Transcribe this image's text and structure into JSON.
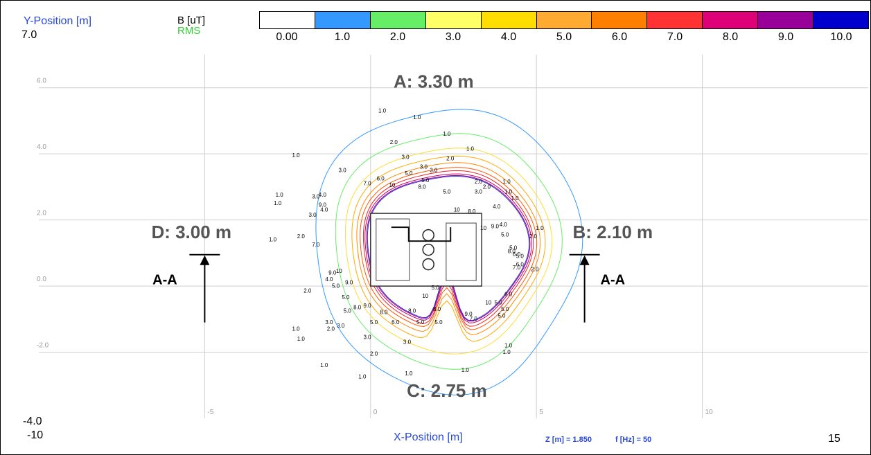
{
  "chart_data": {
    "type": "contour",
    "title": "",
    "xlabel": "X-Position [m]",
    "ylabel": "Y-Position [m]",
    "xlim": [
      -10,
      15
    ],
    "ylim": [
      -4.0,
      7.0
    ],
    "x_min_label": "-10",
    "x_max_label": "15",
    "y_max_label": "7.0",
    "y_min_label": "-4.0",
    "x_ticks": [
      {
        "value": -5,
        "label": "-5"
      },
      {
        "value": 0,
        "label": "0"
      },
      {
        "value": 5,
        "label": "5"
      },
      {
        "value": 10,
        "label": "10"
      }
    ],
    "y_ticks": [
      {
        "value": 6,
        "label": "6.0"
      },
      {
        "value": 4,
        "label": "4.0"
      },
      {
        "value": 2,
        "label": "2.0"
      },
      {
        "value": 0,
        "label": "0.0"
      },
      {
        "value": -2,
        "label": "-2.0"
      }
    ],
    "grid": true,
    "colorbar": {
      "unit_label": "B [uT]",
      "quantity_label": "RMS",
      "levels": [
        "0.00",
        "1.0",
        "2.0",
        "3.0",
        "4.0",
        "5.0",
        "6.0",
        "7.0",
        "8.0",
        "9.0",
        "10.0"
      ],
      "colors": [
        "#ffffff",
        "#3399ff",
        "#66ee66",
        "#ffff66",
        "#ffdd00",
        "#ffaa33",
        "#ff8000",
        "#ff3333",
        "#dd0077",
        "#990099",
        "#0000cc"
      ]
    },
    "contour_levels": [
      {
        "value": 1.0,
        "label": "1.0",
        "color": "#3399ff",
        "rx": 8.0,
        "ry": 8.6
      },
      {
        "value": 2.0,
        "label": "2.0",
        "color": "#66ee66",
        "rx": 6.8,
        "ry": 7.1
      },
      {
        "value": 3.0,
        "label": "3.0",
        "color": "#ffdd33",
        "rx": 6.2,
        "ry": 6.2
      },
      {
        "value": 4.0,
        "label": "4.0",
        "color": "#ffaa00",
        "rx": 5.8,
        "ry": 5.7
      },
      {
        "value": 5.0,
        "label": "5.0",
        "color": "#ff8800",
        "rx": 5.5,
        "ry": 5.3
      },
      {
        "value": 6.0,
        "label": "6.0",
        "color": "#ff5500",
        "rx": 5.3,
        "ry": 5.0
      },
      {
        "value": 7.0,
        "label": "7.0",
        "color": "#ee2222",
        "rx": 5.1,
        "ry": 4.8
      },
      {
        "value": 8.0,
        "label": "8.0",
        "color": "#cc0066",
        "rx": 5.0,
        "ry": 4.6
      },
      {
        "value": 9.0,
        "label": "9.0",
        "color": "#990099",
        "rx": 4.9,
        "ry": 4.5
      },
      {
        "value": 10.0,
        "label": "10",
        "color": "#3333cc",
        "rx": 4.85,
        "ry": 4.45
      }
    ],
    "contour_center": [
      2.3,
      1.15
    ],
    "contour_labels": [
      {
        "x": 0.35,
        "y": 5.25,
        "text": "1.0"
      },
      {
        "x": 1.4,
        "y": 5.05,
        "text": "1.0"
      },
      {
        "x": 2.3,
        "y": 4.55,
        "text": "1.0"
      },
      {
        "x": 3.0,
        "y": 4.1,
        "text": "1.0"
      },
      {
        "x": -2.25,
        "y": 3.9,
        "text": "1.0"
      },
      {
        "x": -2.75,
        "y": 2.7,
        "text": "1.0"
      },
      {
        "x": -2.8,
        "y": 2.45,
        "text": "1.0"
      },
      {
        "x": -2.95,
        "y": 1.35,
        "text": "1.0"
      },
      {
        "x": 5.1,
        "y": 1.7,
        "text": "1.0"
      },
      {
        "x": 4.1,
        "y": 3.1,
        "text": "1.0"
      },
      {
        "x": 4.15,
        "y": 2.8,
        "text": "1.0"
      },
      {
        "x": 4.35,
        "y": 2.6,
        "text": "1.0"
      },
      {
        "x": -2.25,
        "y": -1.35,
        "text": "1.0"
      },
      {
        "x": -2.1,
        "y": -1.65,
        "text": "1.0"
      },
      {
        "x": -1.4,
        "y": -2.45,
        "text": "1.0"
      },
      {
        "x": -0.25,
        "y": -2.8,
        "text": "1.0"
      },
      {
        "x": 1.15,
        "y": -2.7,
        "text": "1.0"
      },
      {
        "x": 2.85,
        "y": -2.6,
        "text": "1.0"
      },
      {
        "x": 4.15,
        "y": -1.85,
        "text": "1.0"
      },
      {
        "x": 4.1,
        "y": -2.05,
        "text": "1.0"
      },
      {
        "x": 0.7,
        "y": 4.3,
        "text": "2.0"
      },
      {
        "x": 3.25,
        "y": 3.1,
        "text": "2.0"
      },
      {
        "x": 3.5,
        "y": 2.95,
        "text": "2.0"
      },
      {
        "x": 4.9,
        "y": 1.45,
        "text": "2.0"
      },
      {
        "x": 4.95,
        "y": 0.45,
        "text": "2.0"
      },
      {
        "x": -2.1,
        "y": 1.45,
        "text": "2.0"
      },
      {
        "x": -1.9,
        "y": -0.2,
        "text": "2.0"
      },
      {
        "x": -1.2,
        "y": -1.35,
        "text": "2.0"
      },
      {
        "x": 0.1,
        "y": -2.1,
        "text": "2.0"
      },
      {
        "x": 1.05,
        "y": 3.85,
        "text": "3.0"
      },
      {
        "x": 1.6,
        "y": 3.55,
        "text": "3.0"
      },
      {
        "x": -0.85,
        "y": 3.45,
        "text": "3.0"
      },
      {
        "x": 3.25,
        "y": 2.8,
        "text": "3.0"
      },
      {
        "x": -1.65,
        "y": 2.65,
        "text": "3.0"
      },
      {
        "x": -1.75,
        "y": 2.1,
        "text": "3.0"
      },
      {
        "x": -1.25,
        "y": -1.15,
        "text": "3.0"
      },
      {
        "x": -0.9,
        "y": -1.25,
        "text": "3.0"
      },
      {
        "x": -0.1,
        "y": -1.6,
        "text": "3.0"
      },
      {
        "x": 1.1,
        "y": -1.75,
        "text": "3.0"
      },
      {
        "x": 2.4,
        "y": 3.8,
        "text": "2.0"
      },
      {
        "x": 1.9,
        "y": 3.45,
        "text": "3.0"
      },
      {
        "x": -1.45,
        "y": 2.7,
        "text": "4.0"
      },
      {
        "x": -1.4,
        "y": 2.25,
        "text": "4.0"
      },
      {
        "x": 3.8,
        "y": 2.35,
        "text": "4.0"
      },
      {
        "x": 4.0,
        "y": 1.8,
        "text": "4.0"
      },
      {
        "x": -1.25,
        "y": 0.15,
        "text": "4.0"
      },
      {
        "x": 1.15,
        "y": 3.35,
        "text": "5.0"
      },
      {
        "x": 1.65,
        "y": 3.15,
        "text": "5.0"
      },
      {
        "x": 2.3,
        "y": 2.8,
        "text": "5.0"
      },
      {
        "x": 4.05,
        "y": 1.5,
        "text": "5.0"
      },
      {
        "x": 4.3,
        "y": 1.1,
        "text": "5.0"
      },
      {
        "x": 4.5,
        "y": 0.85,
        "text": "5.0"
      },
      {
        "x": -1.05,
        "y": -0.05,
        "text": "5.0"
      },
      {
        "x": -0.75,
        "y": -0.4,
        "text": "5.0"
      },
      {
        "x": -0.7,
        "y": -0.8,
        "text": "5.0"
      },
      {
        "x": 0.1,
        "y": -1.15,
        "text": "5.0"
      },
      {
        "x": 1.5,
        "y": -1.15,
        "text": "5.0"
      },
      {
        "x": 2.05,
        "y": -1.15,
        "text": "5.0"
      },
      {
        "x": 3.85,
        "y": -0.55,
        "text": "5.0"
      },
      {
        "x": 4.05,
        "y": -0.75,
        "text": "5.0"
      },
      {
        "x": 3.95,
        "y": -0.95,
        "text": "5.0"
      },
      {
        "x": 1.95,
        "y": -0.1,
        "text": "5.0"
      },
      {
        "x": 0.3,
        "y": 3.2,
        "text": "6.0"
      },
      {
        "x": 4.4,
        "y": 0.9,
        "text": "6.0"
      },
      {
        "x": 4.5,
        "y": 0.6,
        "text": "6.0"
      },
      {
        "x": 4.15,
        "y": -0.3,
        "text": "6.0"
      },
      {
        "x": 0.75,
        "y": -1.15,
        "text": "6.0"
      },
      {
        "x": -0.1,
        "y": 3.05,
        "text": "7.0"
      },
      {
        "x": -1.65,
        "y": 1.2,
        "text": "7.0"
      },
      {
        "x": 4.4,
        "y": 0.5,
        "text": "7.0"
      },
      {
        "x": 3.1,
        "y": -1.05,
        "text": "7.0"
      },
      {
        "x": 1.55,
        "y": 2.95,
        "text": "8.0"
      },
      {
        "x": 3.05,
        "y": 2.2,
        "text": "8.0"
      },
      {
        "x": 4.25,
        "y": 1.0,
        "text": "8.0"
      },
      {
        "x": 1.25,
        "y": -0.8,
        "text": "8.0"
      },
      {
        "x": 2.0,
        "y": -0.75,
        "text": "8.0"
      },
      {
        "x": 0.4,
        "y": -0.85,
        "text": "8.0"
      },
      {
        "x": -0.4,
        "y": -0.7,
        "text": "8.0"
      },
      {
        "x": -1.15,
        "y": 0.35,
        "text": "9.0"
      },
      {
        "x": -0.65,
        "y": 0.05,
        "text": "9.0"
      },
      {
        "x": -0.1,
        "y": -0.65,
        "text": "9.0"
      },
      {
        "x": 2.95,
        "y": -0.9,
        "text": "9.0"
      },
      {
        "x": -1.45,
        "y": 2.4,
        "text": "9.0"
      },
      {
        "x": 3.75,
        "y": 1.75,
        "text": "9.0"
      },
      {
        "x": 0.65,
        "y": 3.0,
        "text": "10"
      },
      {
        "x": 2.6,
        "y": 2.25,
        "text": "10"
      },
      {
        "x": 3.4,
        "y": 1.7,
        "text": "10"
      },
      {
        "x": -0.95,
        "y": 0.4,
        "text": "10"
      },
      {
        "x": 1.65,
        "y": -0.35,
        "text": "10"
      },
      {
        "x": 3.55,
        "y": -0.55,
        "text": "10"
      }
    ],
    "annotations": [
      {
        "id": "A",
        "text": "A: 3.30 m",
        "x": 1.9,
        "y": 6.0
      },
      {
        "id": "B",
        "text": "B: 2.10 m",
        "x": 7.3,
        "y": 1.45
      },
      {
        "id": "C",
        "text": "C: 2.75 m",
        "x": 2.3,
        "y": -3.35
      },
      {
        "id": "D",
        "text": "D: 3.00 m",
        "x": -5.4,
        "y": 1.45
      }
    ],
    "section_markers": [
      {
        "label": "A-A",
        "x": -5.0,
        "y_base": -1.1,
        "y_tip": 0.95,
        "label_x": -6.2,
        "label_y": 0.05
      },
      {
        "label": "A-A",
        "x": 6.45,
        "y_base": -1.1,
        "y_tip": 0.95,
        "label_x": 7.3,
        "label_y": 0.05
      }
    ],
    "source_box": {
      "x0": 0.0,
      "x1": 3.35,
      "y0": 0.0,
      "y1": 2.2
    }
  },
  "footer": {
    "z_info": "Z [m] = 1.850",
    "f_info": "f [Hz] = 50"
  }
}
